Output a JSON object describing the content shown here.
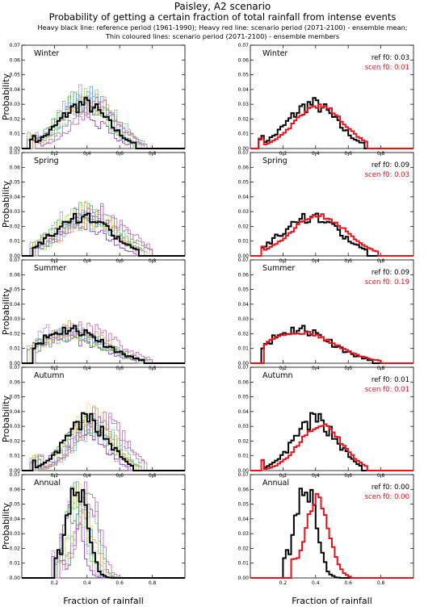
{
  "header": {
    "title": "Paisley, A2 scenario",
    "subtitle": "Probability of getting a certain fraction of total rainfall from intense events",
    "legend_line1": "Heavy black line: reference period (1961-1990); Heavy red line: scenario period (2071-2100) - ensemble mean;",
    "legend_line2": "Thin coloured lines: scenario period (2071-2100) - ensemble members"
  },
  "axes": {
    "ylabel": "Probability",
    "xlabel": "Fraction of rainfall",
    "xticks": [
      "0.2",
      "0.4",
      "0.6",
      "0.8"
    ],
    "yticks_standard": [
      "0.00",
      "0.01",
      "0.02",
      "0.03",
      "0.04",
      "0.05",
      "0.06",
      "0.07"
    ],
    "yticks_annual": [
      "0.00",
      "0.01",
      "0.02",
      "0.03",
      "0.04",
      "0.05",
      "0.06",
      "0.07"
    ]
  },
  "colors": {
    "reference": "#000000",
    "scenario_mean": "#e8121e",
    "members": [
      "#7b2fbe",
      "#9a5ae0",
      "#3cc23c",
      "#9be07a",
      "#f2d43a",
      "#5aa0ff",
      "#f0a040",
      "#33aa77",
      "#8a8a8a",
      "#c060c0"
    ]
  },
  "chart_data": [
    {
      "type": "line",
      "panel": "winter-members",
      "label": "Winter",
      "xlim": [
        0,
        1
      ],
      "ylim": [
        0,
        0.07
      ],
      "ref": {
        "start": 0.05,
        "peak": 0.38,
        "height": 0.03,
        "width": 0.15,
        "end": 0.7
      },
      "members_shift": 0.02,
      "members_height": 0.031
    },
    {
      "type": "line",
      "panel": "winter-mean",
      "label": "Winter",
      "xlim": [
        0,
        1
      ],
      "ylim": [
        0,
        0.07
      ],
      "ref_f0": "ref  f0: 0.03",
      "scen_f0": "scen f0: 0.01",
      "ref": {
        "start": 0.05,
        "peak": 0.38,
        "height": 0.03,
        "width": 0.15,
        "end": 0.7
      },
      "scen": {
        "start": 0.05,
        "peak": 0.42,
        "height": 0.029,
        "width": 0.15,
        "end": 0.72
      }
    },
    {
      "type": "line",
      "panel": "spring-members",
      "label": "Spring",
      "xlim": [
        0,
        1
      ],
      "ylim": [
        0,
        0.07
      ],
      "ref": {
        "start": 0.06,
        "peak": 0.37,
        "height": 0.027,
        "width": 0.17,
        "end": 0.72
      },
      "members_shift": 0.03,
      "members_height": 0.028
    },
    {
      "type": "line",
      "panel": "spring-mean",
      "label": "Spring",
      "xlim": [
        0,
        1
      ],
      "ylim": [
        0,
        0.07
      ],
      "ref_f0": "ref  f0: 0.09",
      "scen_f0": "scen f0: 0.03",
      "ref": {
        "start": 0.06,
        "peak": 0.37,
        "height": 0.027,
        "width": 0.17,
        "end": 0.72
      },
      "scen": {
        "start": 0.06,
        "peak": 0.42,
        "height": 0.027,
        "width": 0.17,
        "end": 0.78
      }
    },
    {
      "type": "line",
      "panel": "summer-members",
      "label": "Summer",
      "xlim": [
        0,
        1
      ],
      "ylim": [
        0,
        0.07
      ],
      "ref": {
        "start": 0.06,
        "peak": 0.3,
        "height": 0.023,
        "width": 0.2,
        "end": 0.75
      },
      "members_shift": 0.0,
      "members_height": 0.021
    },
    {
      "type": "line",
      "panel": "summer-mean",
      "label": "Summer",
      "xlim": [
        0,
        1
      ],
      "ylim": [
        0,
        0.07
      ],
      "ref_f0": "ref  f0: 0.09",
      "scen_f0": "scen f0: 0.19",
      "ref": {
        "start": 0.06,
        "peak": 0.3,
        "height": 0.023,
        "width": 0.2,
        "end": 0.75
      },
      "scen": {
        "start": 0.08,
        "peak": 0.3,
        "height": 0.021,
        "width": 0.22,
        "end": 0.8
      }
    },
    {
      "type": "line",
      "panel": "autumn-members",
      "label": "Autumn",
      "xlim": [
        0,
        1
      ],
      "ylim": [
        0,
        0.07
      ],
      "ref": {
        "start": 0.06,
        "peak": 0.4,
        "height": 0.034,
        "width": 0.13,
        "end": 0.68
      },
      "members_shift": 0.03,
      "members_height": 0.033
    },
    {
      "type": "line",
      "panel": "autumn-mean",
      "label": "Autumn",
      "xlim": [
        0,
        1
      ],
      "ylim": [
        0,
        0.07
      ],
      "ref_f0": "ref  f0: 0.01",
      "scen_f0": "scen f0: 0.01",
      "ref": {
        "start": 0.06,
        "peak": 0.4,
        "height": 0.034,
        "width": 0.13,
        "end": 0.68
      },
      "scen": {
        "start": 0.06,
        "peak": 0.43,
        "height": 0.031,
        "width": 0.13,
        "end": 0.72
      }
    },
    {
      "type": "line",
      "panel": "annual-members",
      "label": "Annual",
      "xlim": [
        0,
        1
      ],
      "ylim": [
        0,
        0.07
      ],
      "ref": {
        "start": 0.2,
        "peak": 0.34,
        "height": 0.065,
        "width": 0.06,
        "end": 0.55
      },
      "members_shift": 0.02,
      "members_height": 0.055
    },
    {
      "type": "line",
      "panel": "annual-mean",
      "label": "Annual",
      "xlim": [
        0,
        1
      ],
      "ylim": [
        0,
        0.07
      ],
      "ref_f0": "ref  f0: 0.00",
      "scen_f0": "scen f0: 0.00",
      "ref": {
        "start": 0.2,
        "peak": 0.34,
        "height": 0.065,
        "width": 0.06,
        "end": 0.55
      },
      "scen": {
        "start": 0.25,
        "peak": 0.41,
        "height": 0.054,
        "width": 0.07,
        "end": 0.62
      }
    }
  ]
}
